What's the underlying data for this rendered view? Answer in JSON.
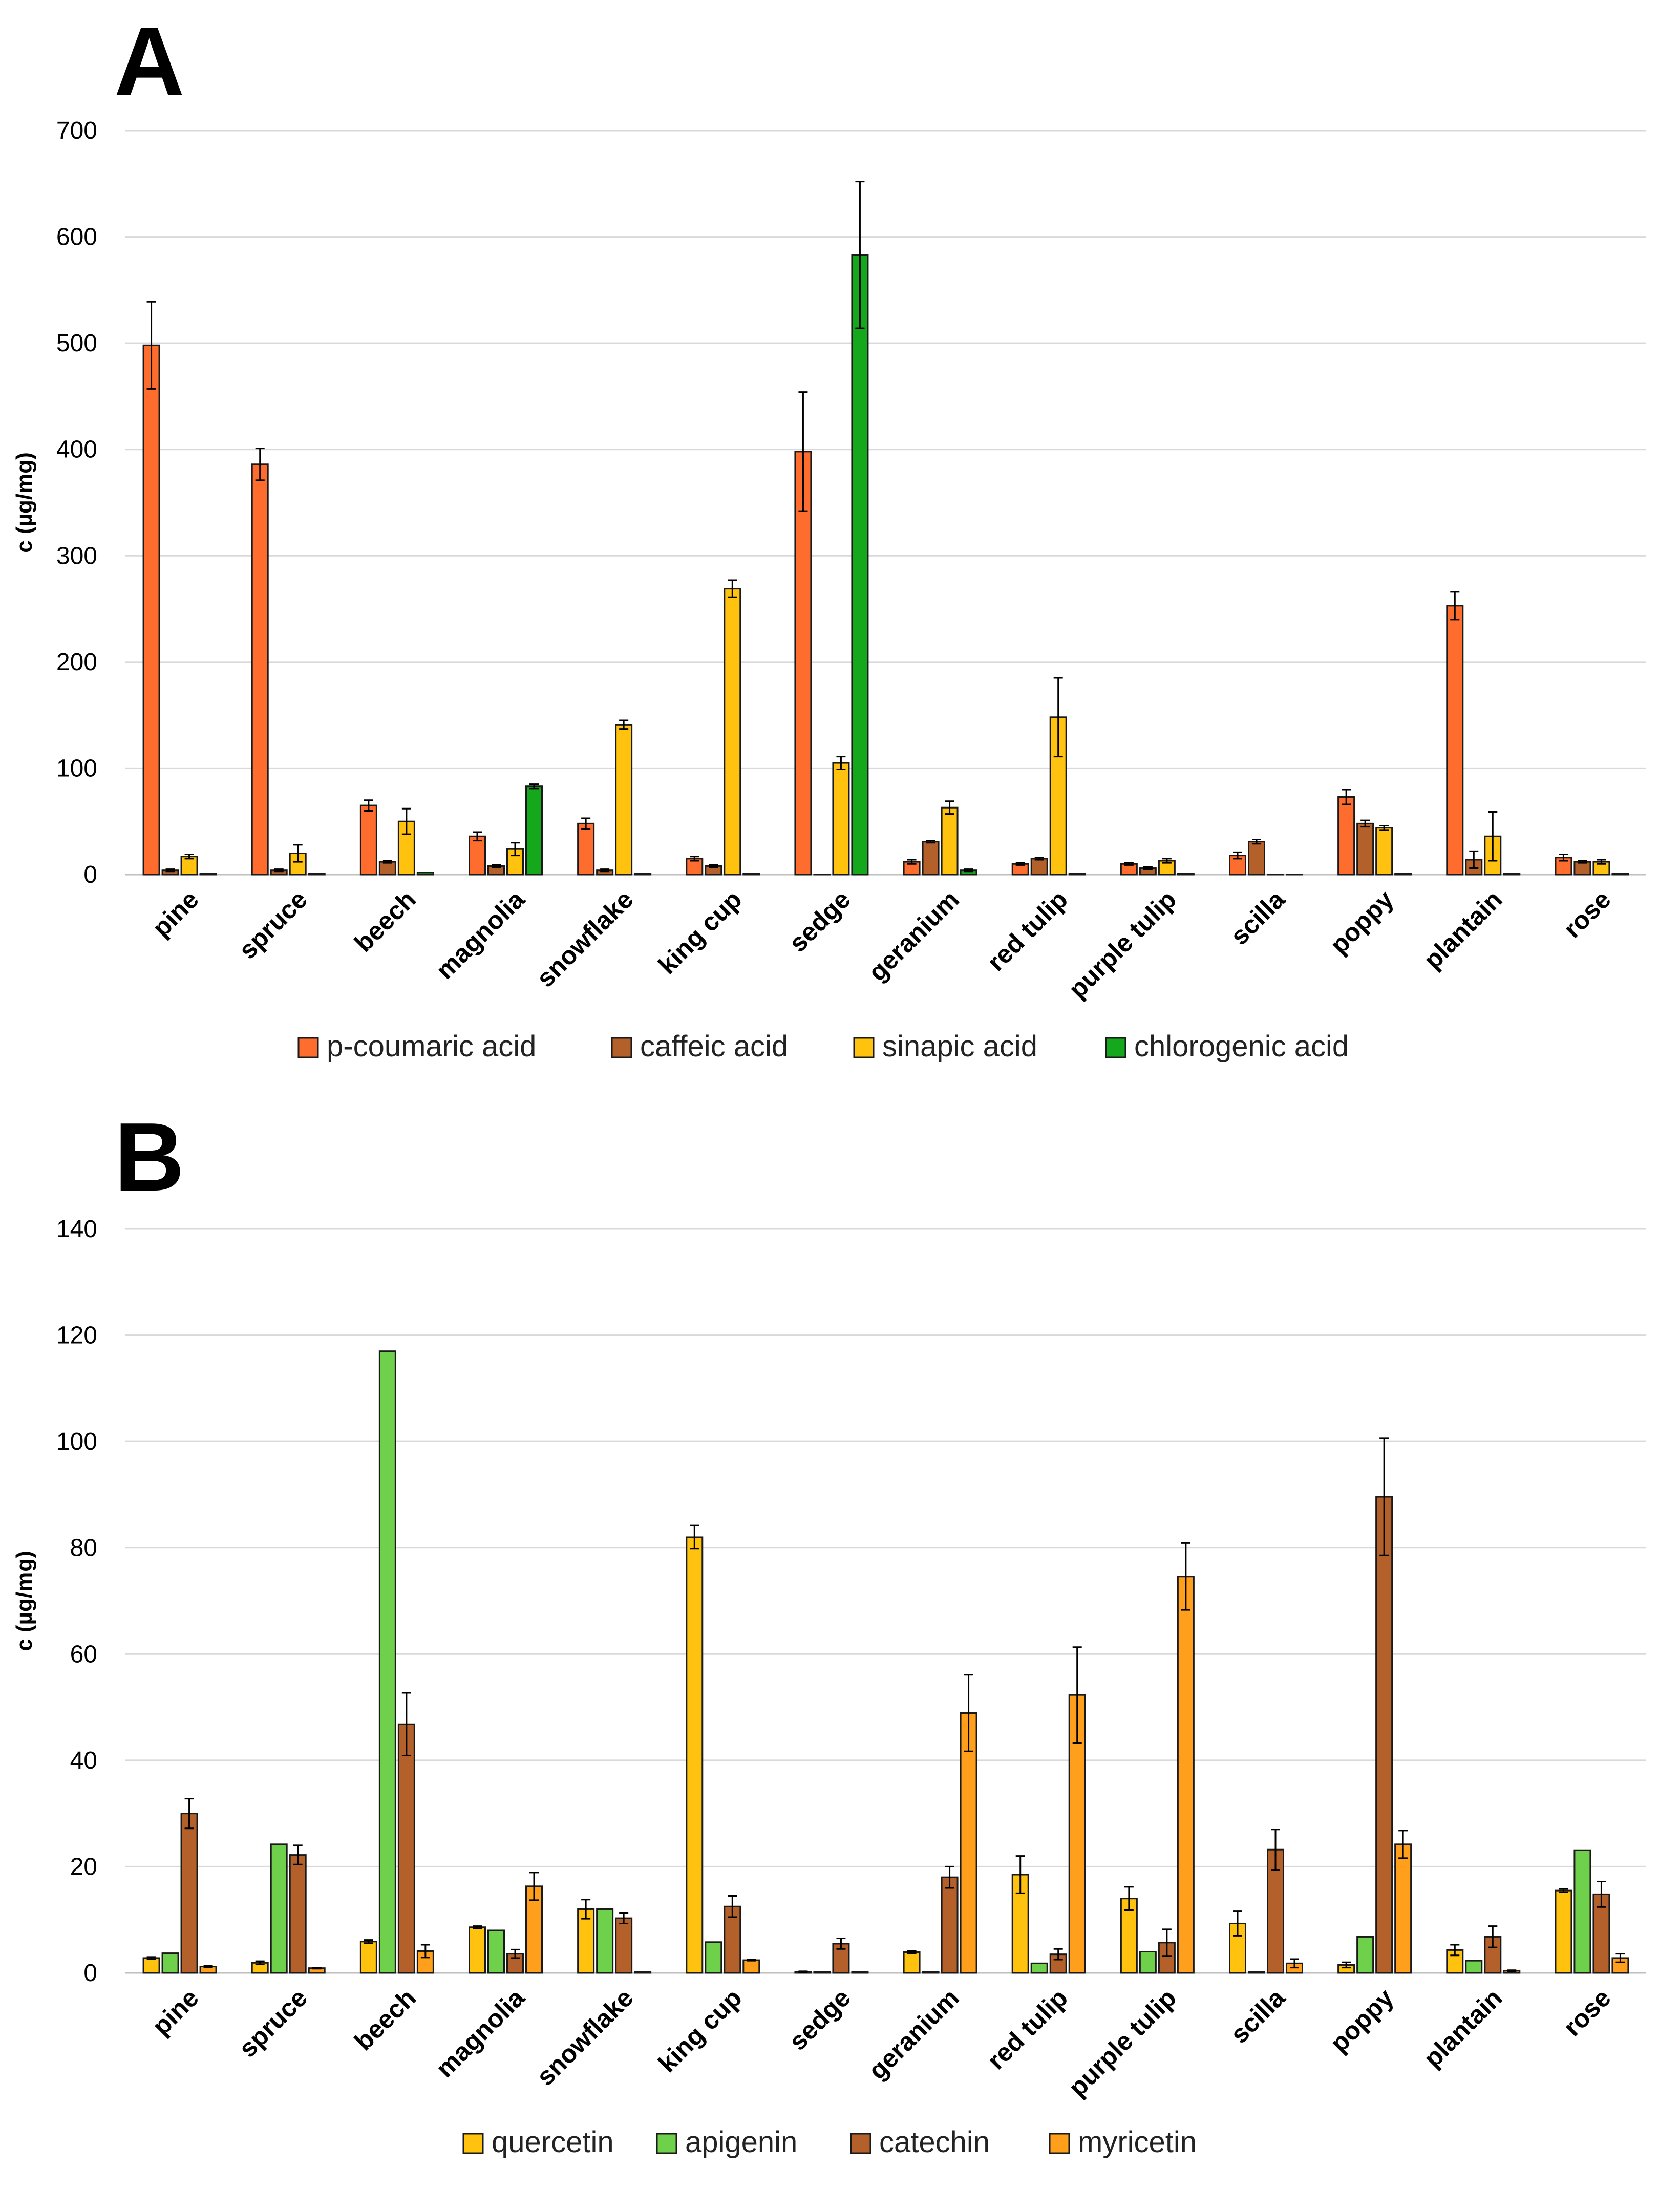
{
  "chart_data": [
    {
      "panel": "A",
      "type": "bar",
      "ylabel": "c (µg/mg)",
      "ylim": [
        0,
        700
      ],
      "yticks": [
        0,
        100,
        200,
        300,
        400,
        500,
        600,
        700
      ],
      "grid": true,
      "legend_position": "bottom",
      "categories": [
        "pine",
        "spruce",
        "beech",
        "magnolia",
        "snowflake",
        "king cup",
        "sedge",
        "geranium",
        "red tulip",
        "purple tulip",
        "scilla",
        "poppy",
        "plantain",
        "rose"
      ],
      "series": [
        {
          "name": "p-coumaric acid",
          "color": "#ff6d2e",
          "values": [
            498,
            386,
            65,
            36,
            48,
            15,
            398,
            12,
            10,
            10,
            18,
            73,
            253,
            16
          ],
          "errors": [
            41,
            15,
            5,
            4,
            5,
            2,
            56,
            2,
            1,
            1,
            3,
            7,
            13,
            3
          ]
        },
        {
          "name": "caffeic acid",
          "color": "#b3602a",
          "values": [
            4,
            4,
            12,
            8,
            4,
            8,
            0,
            31,
            15,
            6,
            31,
            48,
            14,
            12
          ],
          "errors": [
            1,
            1,
            1,
            1,
            1,
            1,
            0,
            1,
            1,
            1,
            2,
            3,
            8,
            1
          ]
        },
        {
          "name": "sinapic acid",
          "color": "#ffc20e",
          "values": [
            17,
            20,
            50,
            24,
            141,
            269,
            105,
            63,
            148,
            13,
            0,
            44,
            36,
            12
          ],
          "errors": [
            2,
            8,
            12,
            6,
            4,
            8,
            6,
            6,
            37,
            2,
            0,
            2,
            23,
            2
          ]
        },
        {
          "name": "chlorogenic acid",
          "color": "#16a81c",
          "values": [
            1,
            1,
            2,
            83,
            1,
            1,
            583,
            4,
            1,
            1,
            0,
            1,
            1,
            1
          ],
          "errors": [
            0,
            0,
            0,
            2,
            0,
            0,
            69,
            1,
            0,
            0,
            0,
            0,
            0,
            0
          ]
        }
      ]
    },
    {
      "panel": "B",
      "type": "bar",
      "ylabel": "c (µg/mg)",
      "ylim": [
        0,
        140
      ],
      "yticks": [
        0,
        20,
        40,
        60,
        80,
        100,
        120,
        140
      ],
      "grid": true,
      "legend_position": "bottom",
      "categories": [
        "pine",
        "spruce",
        "beech",
        "magnolia",
        "snowflake",
        "king cup",
        "sedge",
        "geranium",
        "red tulip",
        "purple tulip",
        "scilla",
        "poppy",
        "plantain",
        "rose"
      ],
      "series": [
        {
          "name": "quercetin",
          "color": "#ffc20e",
          "values": [
            2.8,
            1.9,
            5.9,
            8.6,
            12,
            82,
            0.2,
            3.9,
            18.5,
            14,
            9.3,
            1.5,
            4.3,
            15.5
          ],
          "errors": [
            0.2,
            0.3,
            0.3,
            0.2,
            1.8,
            2.2,
            0.1,
            0.2,
            3.5,
            2.2,
            2.3,
            0.5,
            1,
            0.3
          ]
        },
        {
          "name": "apigenin",
          "color": "#6fd14b",
          "values": [
            3.7,
            24.2,
            117,
            8,
            12,
            5.8,
            0.2,
            0.2,
            1.8,
            4,
            0.2,
            6.8,
            2.3,
            23.1
          ]
        },
        {
          "name": "catechin",
          "color": "#b3602a",
          "values": [
            30,
            22.2,
            46.8,
            3.6,
            10.3,
            12.5,
            5.5,
            18,
            3.5,
            5.7,
            23.2,
            89.6,
            6.8,
            14.8
          ],
          "errors": [
            2.8,
            1.8,
            5.9,
            0.8,
            1,
            2,
            1,
            2,
            1,
            2.5,
            3.8,
            11,
            2,
            2.4
          ]
        },
        {
          "name": "myricetin",
          "color": "#ff9f1c",
          "values": [
            1.2,
            0.9,
            4.1,
            16.3,
            0.2,
            2.4,
            0.2,
            48.9,
            52.3,
            74.6,
            1.8,
            24.2,
            0.4,
            2.8
          ],
          "errors": [
            0.1,
            0.1,
            1.2,
            2.6,
            0,
            0.1,
            0,
            7.2,
            9,
            6.3,
            0.8,
            2.6,
            0.1,
            0.8
          ]
        }
      ]
    }
  ]
}
